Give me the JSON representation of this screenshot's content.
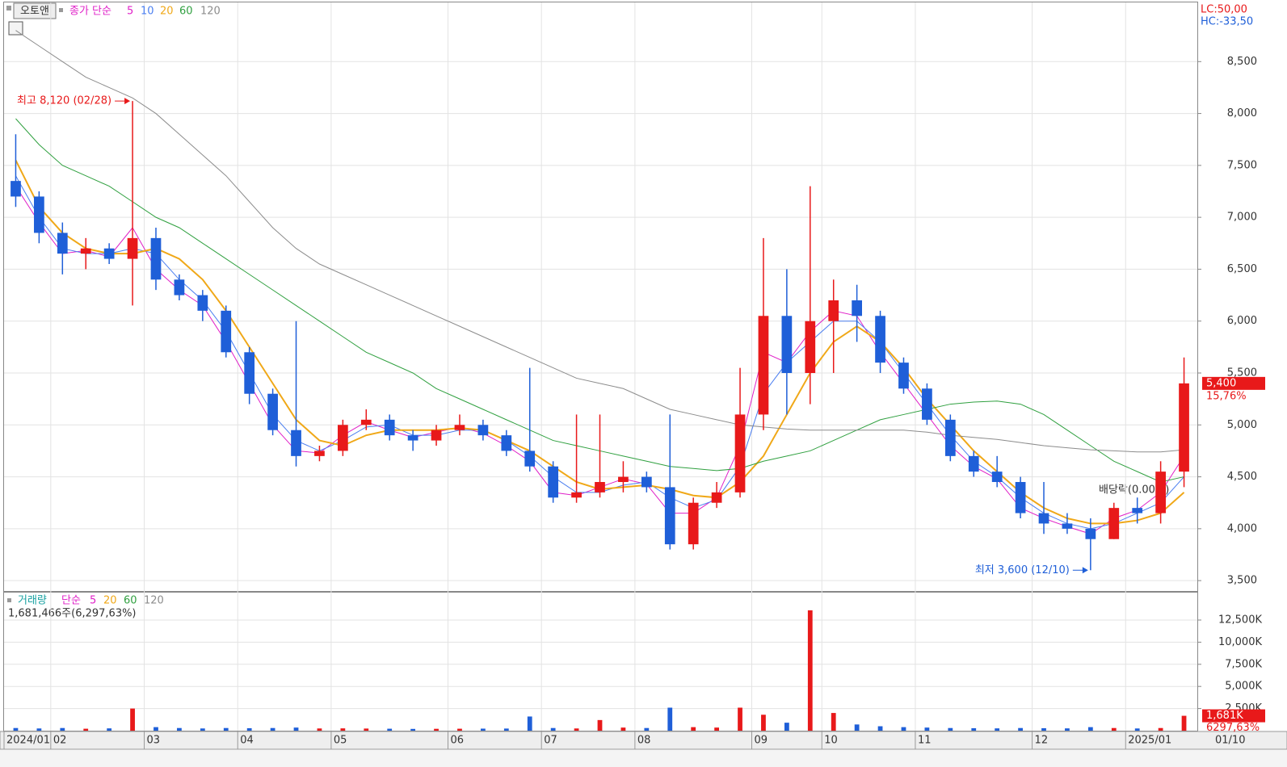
{
  "stock_name": "오토앤",
  "lc": "LC:50,00",
  "hc": "HC:-33,50",
  "current_date": "01/10",
  "chart_data": [
    {
      "type": "candlestick",
      "legend_prefix": "종가 단순",
      "categories": [
        "2024/01",
        null,
        "02",
        null,
        null,
        null,
        "03",
        null,
        null,
        null,
        "04",
        null,
        null,
        null,
        "05",
        null,
        null,
        null,
        null,
        "06",
        null,
        null,
        null,
        "07",
        null,
        null,
        null,
        "08",
        null,
        null,
        null,
        null,
        "09",
        null,
        null,
        "10",
        null,
        null,
        null,
        "11",
        null,
        null,
        null,
        null,
        "12",
        null,
        null,
        null,
        "2025/01",
        null,
        null
      ],
      "open": [
        7350,
        7200,
        6850,
        6650,
        6700,
        6600,
        6800,
        6400,
        6250,
        6100,
        5700,
        5300,
        4950,
        4700,
        4750,
        5000,
        5050,
        4900,
        4850,
        4950,
        5000,
        4900,
        4750,
        4600,
        4300,
        4350,
        4450,
        4500,
        4400,
        3850,
        4250,
        4350,
        5100,
        6050,
        5500,
        6000,
        6200,
        6050,
        5600,
        5350,
        5050,
        4700,
        4550,
        4450,
        4150,
        4050,
        4000,
        3900,
        4200,
        4150,
        4550
      ],
      "high": [
        7800,
        7250,
        6950,
        6800,
        6750,
        8120,
        6900,
        6450,
        6300,
        6150,
        5750,
        5350,
        6000,
        4800,
        5050,
        5150,
        5100,
        4950,
        5000,
        5100,
        5050,
        4950,
        5550,
        4650,
        5100,
        5100,
        4650,
        4550,
        5100,
        4300,
        4450,
        5550,
        6800,
        6500,
        7300,
        6400,
        6350,
        6100,
        5650,
        5400,
        5100,
        4750,
        4700,
        4500,
        4450,
        4150,
        4100,
        4250,
        4300,
        4650,
        5650
      ],
      "low": [
        7100,
        6750,
        6450,
        6500,
        6550,
        6150,
        6300,
        6200,
        6000,
        5650,
        5200,
        4900,
        4600,
        4650,
        4700,
        4950,
        4850,
        4750,
        4800,
        4900,
        4850,
        4700,
        4550,
        4250,
        4250,
        4300,
        4350,
        4350,
        3800,
        3800,
        4200,
        4300,
        4950,
        5100,
        5200,
        5500,
        5800,
        5500,
        5300,
        5000,
        4650,
        4500,
        4400,
        4100,
        3950,
        3950,
        3600,
        3900,
        4050,
        4050,
        4400
      ],
      "close": [
        7200,
        6850,
        6650,
        6700,
        6600,
        6800,
        6400,
        6250,
        6100,
        5700,
        5300,
        4950,
        4700,
        4750,
        5000,
        5050,
        4900,
        4850,
        4950,
        5000,
        4900,
        4750,
        4600,
        4300,
        4350,
        4450,
        4500,
        4400,
        3850,
        4250,
        4350,
        5100,
        6050,
        5500,
        6000,
        6200,
        6050,
        5600,
        5350,
        5050,
        4700,
        4550,
        4450,
        4150,
        4050,
        4000,
        3900,
        4200,
        4150,
        4550,
        5400
      ],
      "up_color": "#e8191a",
      "down_color": "#1f5fd8",
      "ma": [
        {
          "name": "5",
          "color": "#e020c8",
          "values": [
            7300,
            6950,
            6650,
            6680,
            6620,
            6900,
            6500,
            6300,
            6150,
            5800,
            5400,
            5000,
            4750,
            4730,
            4900,
            5030,
            4950,
            4880,
            4930,
            4980,
            4920,
            4800,
            4650,
            4350,
            4320,
            4400,
            4480,
            4430,
            4150,
            4150,
            4300,
            4800,
            5700,
            5600,
            5900,
            6100,
            6050,
            5700,
            5400,
            5100,
            4800,
            4600,
            4480,
            4200,
            4100,
            4020,
            3950,
            4100,
            4180,
            4350,
            4700
          ]
        },
        {
          "name": "10",
          "color": "#4a7ef0",
          "values": [
            7400,
            7000,
            6700,
            6650,
            6650,
            6700,
            6650,
            6400,
            6200,
            5900,
            5500,
            5100,
            4850,
            4750,
            4850,
            4980,
            5000,
            4900,
            4900,
            4950,
            4950,
            4850,
            4700,
            4500,
            4350,
            4350,
            4420,
            4450,
            4300,
            4200,
            4280,
            4600,
            5300,
            5600,
            5800,
            6000,
            6000,
            5800,
            5500,
            5200,
            4900,
            4650,
            4500,
            4300,
            4150,
            4050,
            4000,
            4050,
            4150,
            4250,
            4500
          ]
        },
        {
          "name": "20",
          "color": "#f0a818",
          "values": [
            7550,
            7100,
            6850,
            6700,
            6650,
            6650,
            6700,
            6600,
            6400,
            6100,
            5750,
            5400,
            5050,
            4850,
            4800,
            4900,
            4950,
            4950,
            4950,
            4970,
            4950,
            4850,
            4750,
            4600,
            4450,
            4380,
            4400,
            4420,
            4380,
            4320,
            4300,
            4450,
            4700,
            5100,
            5500,
            5800,
            5950,
            5800,
            5550,
            5250,
            5000,
            4750,
            4550,
            4350,
            4200,
            4100,
            4050,
            4050,
            4080,
            4150,
            4350
          ]
        },
        {
          "name": "60",
          "color": "#30a040",
          "values": [
            7950,
            7700,
            7500,
            7400,
            7300,
            7150,
            7000,
            6900,
            6750,
            6600,
            6450,
            6300,
            6150,
            6000,
            5850,
            5700,
            5600,
            5500,
            5350,
            5250,
            5150,
            5050,
            4950,
            4850,
            4800,
            4750,
            4700,
            4650,
            4600,
            4580,
            4560,
            4580,
            4650,
            4700,
            4750,
            4850,
            4950,
            5050,
            5100,
            5150,
            5200,
            5220,
            5230,
            5200,
            5100,
            4950,
            4800,
            4650,
            4550,
            4450,
            4500
          ]
        },
        {
          "name": "120",
          "color": "#8c8c8c",
          "values": [
            8800,
            8650,
            8500,
            8350,
            8250,
            8150,
            8000,
            7800,
            7600,
            7400,
            7150,
            6900,
            6700,
            6550,
            6450,
            6350,
            6250,
            6150,
            6050,
            5950,
            5850,
            5750,
            5650,
            5550,
            5450,
            5400,
            5350,
            5250,
            5150,
            5100,
            5050,
            5000,
            4980,
            4960,
            4950,
            4950,
            4950,
            4950,
            4950,
            4930,
            4900,
            4880,
            4860,
            4830,
            4800,
            4780,
            4760,
            4750,
            4740,
            4740,
            4760
          ]
        }
      ],
      "ylim": [
        3400,
        9070
      ],
      "yticks": [
        {
          "value": 3500,
          "label": "3,500"
        },
        {
          "value": 4000,
          "label": "4,000"
        },
        {
          "value": 4500,
          "label": "4,500"
        },
        {
          "value": 5000,
          "label": "5,000"
        },
        {
          "value": 5500,
          "label": "5,500"
        },
        {
          "value": 6000,
          "label": "6,000"
        },
        {
          "value": 6500,
          "label": "6,500"
        },
        {
          "value": 7000,
          "label": "7,000"
        },
        {
          "value": 7500,
          "label": "7,500"
        },
        {
          "value": 8000,
          "label": "8,000"
        },
        {
          "value": 8500,
          "label": "8,500"
        }
      ],
      "grid": true,
      "high_note": {
        "text": "최고 8,120 (02/28)",
        "value": 8120
      },
      "low_note": {
        "text": "최저 3,600 (12/10)",
        "value": 3600
      },
      "dividend_note": "배당락(0.00%)",
      "current_price": {
        "value": 5400,
        "label": "5,400"
      },
      "change": "15,76%"
    },
    {
      "type": "bar",
      "name": "거래량",
      "legend_prefix": "단순",
      "ma_labels": [
        {
          "name": "5",
          "color": "#e020c8"
        },
        {
          "name": "20",
          "color": "#f0a818"
        },
        {
          "name": "60",
          "color": "#30a040"
        },
        {
          "name": "120",
          "color": "#8c8c8c"
        }
      ],
      "info": "1,681,466주(6,297,63%)",
      "values": [
        300,
        250,
        300,
        220,
        260,
        2500,
        400,
        300,
        250,
        300,
        280,
        300,
        350,
        250,
        260,
        240,
        220,
        200,
        210,
        220,
        230,
        240,
        1600,
        300,
        250,
        1200,
        350,
        300,
        2600,
        400,
        350,
        2600,
        1800,
        900,
        13600,
        2000,
        700,
        500,
        400,
        350,
        300,
        280,
        260,
        300,
        280,
        260,
        400,
        300,
        250,
        300,
        1681
      ],
      "ylim": [
        0,
        15600
      ],
      "yticks": [
        {
          "value": 2500,
          "label": "2,500K"
        },
        {
          "value": 5000,
          "label": "5,000K"
        },
        {
          "value": 7500,
          "label": "7,500K"
        },
        {
          "value": 10000,
          "label": "10,000K"
        },
        {
          "value": 12500,
          "label": "12,500K"
        }
      ],
      "current_volume": {
        "value": 1681,
        "label": "1,681K"
      },
      "ratio": "6297,63%"
    }
  ]
}
